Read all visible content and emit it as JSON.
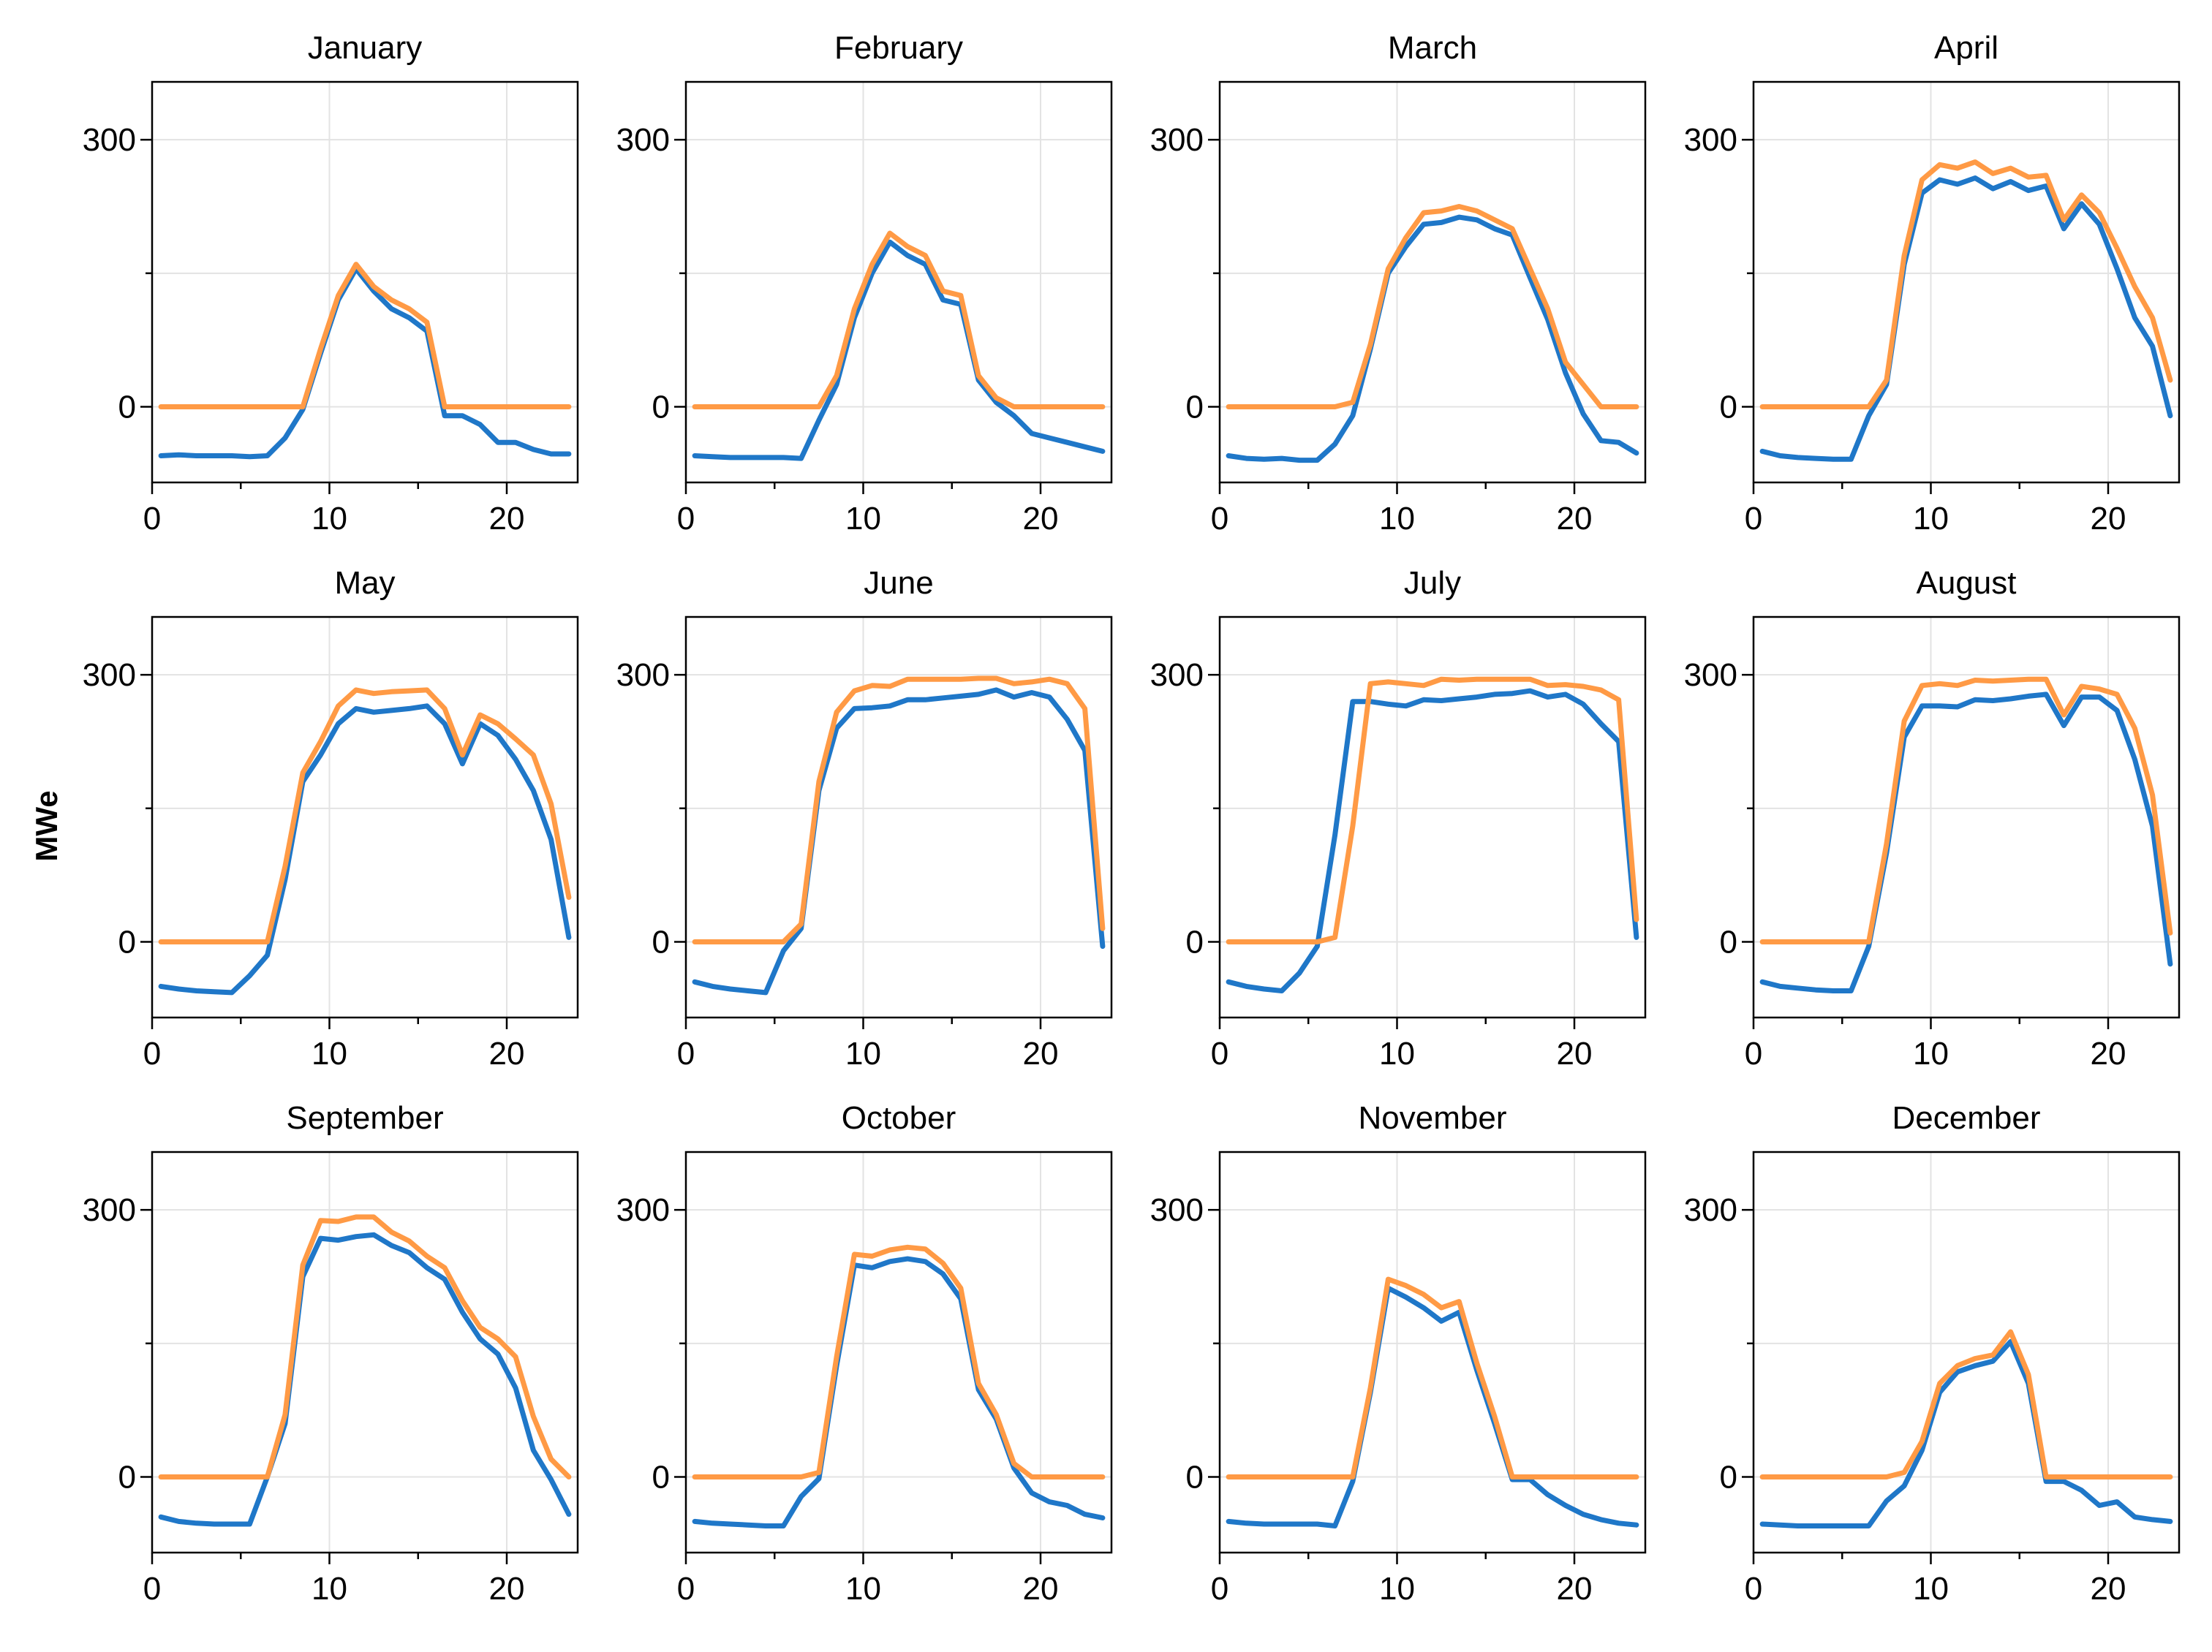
{
  "chart_data": {
    "type": "line",
    "ylabel": "MWe",
    "xlim": [
      0,
      24
    ],
    "ylim": [
      -85,
      365
    ],
    "x_ticks": [
      0,
      10,
      20
    ],
    "y_ticks": [
      0,
      300
    ],
    "grid": true,
    "colors": {
      "blue": "#1F77C8",
      "orange": "#FF9A45",
      "axis": "#000000",
      "grid": "#E3E3E3"
    },
    "hours": [
      0.5,
      1.5,
      2.5,
      3.5,
      4.5,
      5.5,
      6.5,
      7.5,
      8.5,
      9.5,
      10.5,
      11.5,
      12.5,
      13.5,
      14.5,
      15.5,
      16.5,
      17.5,
      18.5,
      19.5,
      20.5,
      21.5,
      22.5,
      23.5
    ],
    "panels": [
      {
        "title": "January",
        "series": [
          {
            "name": "blue",
            "values": [
              -55,
              -54,
              -55,
              -55,
              -55,
              -56,
              -55,
              -35,
              -3,
              60,
              120,
              155,
              130,
              110,
              100,
              85,
              -10,
              -10,
              -20,
              -40,
              -40,
              -48,
              -53,
              -53
            ]
          },
          {
            "name": "orange",
            "values": [
              0,
              0,
              0,
              0,
              0,
              0,
              0,
              0,
              0,
              65,
              125,
              160,
              135,
              120,
              110,
              95,
              0,
              0,
              0,
              0,
              0,
              0,
              0,
              0
            ]
          }
        ]
      },
      {
        "title": "February",
        "series": [
          {
            "name": "blue",
            "values": [
              -55,
              -56,
              -57,
              -57,
              -57,
              -57,
              -58,
              -15,
              25,
              100,
              150,
              185,
              170,
              160,
              120,
              115,
              30,
              5,
              -10,
              -30,
              -35,
              -40,
              -45,
              -50
            ]
          },
          {
            "name": "orange",
            "values": [
              0,
              0,
              0,
              0,
              0,
              0,
              0,
              0,
              35,
              110,
              160,
              195,
              180,
              170,
              130,
              125,
              35,
              10,
              0,
              0,
              0,
              0,
              0,
              0
            ]
          }
        ]
      },
      {
        "title": "March",
        "series": [
          {
            "name": "blue",
            "values": [
              -55,
              -58,
              -59,
              -58,
              -60,
              -60,
              -42,
              -10,
              65,
              150,
              180,
              205,
              207,
              213,
              210,
              200,
              193,
              145,
              98,
              38,
              -8,
              -38,
              -40,
              -52
            ]
          },
          {
            "name": "orange",
            "values": [
              0,
              0,
              0,
              0,
              0,
              0,
              0,
              5,
              70,
              155,
              190,
              218,
              220,
              225,
              220,
              210,
              200,
              155,
              110,
              50,
              25,
              0,
              0,
              0
            ]
          }
        ]
      },
      {
        "title": "April",
        "series": [
          {
            "name": "blue",
            "values": [
              -50,
              -55,
              -57,
              -58,
              -59,
              -59,
              -10,
              25,
              160,
              240,
              255,
              250,
              257,
              245,
              253,
              243,
              248,
              200,
              228,
              205,
              155,
              100,
              68,
              -10
            ]
          },
          {
            "name": "orange",
            "values": [
              0,
              0,
              0,
              0,
              0,
              0,
              0,
              30,
              170,
              255,
              272,
              268,
              275,
              262,
              268,
              258,
              260,
              210,
              238,
              218,
              178,
              135,
              100,
              30
            ]
          }
        ]
      },
      {
        "title": "May",
        "series": [
          {
            "name": "blue",
            "values": [
              -50,
              -53,
              -55,
              -56,
              -57,
              -38,
              -15,
              70,
              180,
              210,
              245,
              262,
              258,
              260,
              262,
              265,
              245,
              200,
              245,
              232,
              205,
              170,
              115,
              5
            ]
          },
          {
            "name": "orange",
            "values": [
              0,
              0,
              0,
              0,
              0,
              0,
              0,
              85,
              190,
              225,
              265,
              283,
              279,
              281,
              282,
              283,
              262,
              210,
              255,
              245,
              228,
              210,
              155,
              50
            ]
          }
        ]
      },
      {
        "title": "June",
        "series": [
          {
            "name": "blue",
            "values": [
              -45,
              -50,
              -53,
              -55,
              -57,
              -10,
              15,
              170,
              240,
              262,
              263,
              265,
              272,
              272,
              274,
              276,
              278,
              283,
              275,
              280,
              275,
              250,
              215,
              -5
            ]
          },
          {
            "name": "orange",
            "values": [
              0,
              0,
              0,
              0,
              0,
              0,
              20,
              180,
              258,
              282,
              288,
              287,
              295,
              295,
              295,
              295,
              296,
              296,
              290,
              292,
              295,
              290,
              262,
              15
            ]
          }
        ]
      },
      {
        "title": "July",
        "series": [
          {
            "name": "blue",
            "values": [
              -45,
              -50,
              -53,
              -55,
              -35,
              -5,
              120,
              270,
              270,
              267,
              265,
              272,
              271,
              273,
              275,
              278,
              279,
              282,
              275,
              278,
              267,
              245,
              225,
              5
            ]
          },
          {
            "name": "orange",
            "values": [
              0,
              0,
              0,
              0,
              0,
              0,
              5,
              130,
              290,
              292,
              290,
              288,
              295,
              294,
              295,
              295,
              295,
              295,
              288,
              289,
              287,
              283,
              272,
              25
            ]
          }
        ]
      },
      {
        "title": "August",
        "series": [
          {
            "name": "blue",
            "values": [
              -45,
              -50,
              -52,
              -54,
              -55,
              -55,
              -5,
              100,
              230,
              265,
              265,
              264,
              272,
              271,
              273,
              276,
              278,
              243,
              275,
              275,
              260,
              205,
              130,
              -25
            ]
          },
          {
            "name": "orange",
            "values": [
              0,
              0,
              0,
              0,
              0,
              0,
              0,
              110,
              248,
              288,
              290,
              288,
              294,
              293,
              294,
              295,
              295,
              255,
              287,
              284,
              278,
              240,
              165,
              10
            ]
          }
        ]
      },
      {
        "title": "September",
        "series": [
          {
            "name": "blue",
            "values": [
              -45,
              -50,
              -52,
              -53,
              -53,
              -53,
              0,
              60,
              225,
              268,
              266,
              270,
              272,
              260,
              252,
              235,
              222,
              185,
              155,
              138,
              100,
              30,
              -3,
              -42
            ]
          },
          {
            "name": "orange",
            "values": [
              0,
              0,
              0,
              0,
              0,
              0,
              0,
              70,
              238,
              288,
              287,
              292,
              292,
              275,
              265,
              248,
              235,
              198,
              168,
              155,
              135,
              68,
              20,
              0
            ]
          }
        ]
      },
      {
        "title": "October",
        "series": [
          {
            "name": "blue",
            "values": [
              -50,
              -52,
              -53,
              -54,
              -55,
              -55,
              -22,
              -2,
              125,
              238,
              235,
              242,
              245,
              242,
              228,
              200,
              98,
              65,
              10,
              -18,
              -28,
              -32,
              -42,
              -46
            ]
          },
          {
            "name": "orange",
            "values": [
              0,
              0,
              0,
              0,
              0,
              0,
              0,
              5,
              135,
              250,
              248,
              255,
              258,
              256,
              240,
              212,
              105,
              70,
              15,
              0,
              0,
              0,
              0,
              0
            ]
          }
        ]
      },
      {
        "title": "November",
        "series": [
          {
            "name": "blue",
            "values": [
              -50,
              -52,
              -53,
              -53,
              -53,
              -53,
              -55,
              -5,
              95,
              212,
              202,
              190,
              175,
              185,
              120,
              60,
              -3,
              -3,
              -20,
              -32,
              -42,
              -48,
              -52,
              -54
            ]
          },
          {
            "name": "orange",
            "values": [
              0,
              0,
              0,
              0,
              0,
              0,
              0,
              0,
              100,
              222,
              215,
              205,
              190,
              197,
              128,
              68,
              0,
              0,
              0,
              0,
              0,
              0,
              0,
              0
            ]
          }
        ]
      },
      {
        "title": "December",
        "series": [
          {
            "name": "blue",
            "values": [
              -53,
              -54,
              -55,
              -55,
              -55,
              -55,
              -55,
              -27,
              -10,
              30,
              95,
              118,
              125,
              130,
              152,
              105,
              -5,
              -5,
              -15,
              -32,
              -28,
              -45,
              -48,
              -50
            ]
          },
          {
            "name": "orange",
            "values": [
              0,
              0,
              0,
              0,
              0,
              0,
              0,
              0,
              5,
              40,
              105,
              125,
              133,
              137,
              163,
              115,
              0,
              0,
              0,
              0,
              0,
              0,
              0,
              0
            ]
          }
        ]
      }
    ]
  }
}
